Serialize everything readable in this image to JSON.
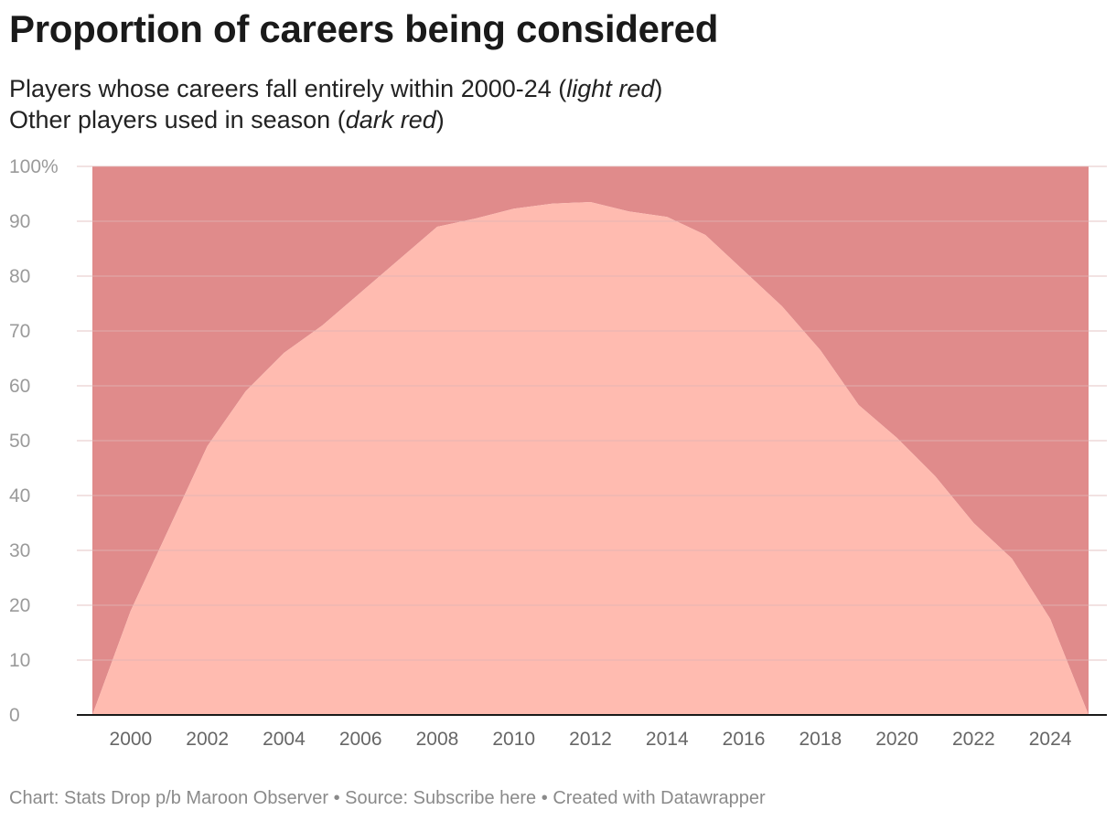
{
  "header": {
    "title": "Proportion of careers being considered",
    "subtitle_line1_pre": "Players whose careers fall entirely within 2000-24 (",
    "subtitle_line1_em": "light red",
    "subtitle_line1_post": ")",
    "subtitle_line2_pre": "Other players used in season (",
    "subtitle_line2_em": "dark red",
    "subtitle_line2_post": ")"
  },
  "footer": {
    "chart_label": "Chart: Stats Drop p/b Maroon Observer",
    "sep1": " • ",
    "source_label": "Source: ",
    "source_link": "Subscribe here",
    "sep2": " • ",
    "created": "Created with Datawrapper"
  },
  "colors": {
    "light_red": "#ffbbb0",
    "dark_red": "#e08b8b",
    "grid": "#e0b6b6",
    "baseline": "#1a1a1a"
  },
  "chart_data": {
    "type": "area",
    "stacked": true,
    "title": "Proportion of careers being considered",
    "xlabel": "",
    "ylabel": "",
    "xlim": [
      1999,
      2025
    ],
    "ylim": [
      0,
      100
    ],
    "x": [
      1999,
      2000,
      2001,
      2002,
      2003,
      2004,
      2005,
      2006,
      2007,
      2008,
      2009,
      2010,
      2011,
      2012,
      2013,
      2014,
      2015,
      2016,
      2017,
      2018,
      2019,
      2020,
      2021,
      2022,
      2023,
      2024,
      2025
    ],
    "series": [
      {
        "name": "Players whose careers fall entirely within 2000-24",
        "color": "light red",
        "values": [
          0,
          19,
          34,
          49,
          59,
          66,
          71,
          77,
          83,
          89,
          90.5,
          92.3,
          93.2,
          93.5,
          91.8,
          90.8,
          87.5,
          81,
          74.5,
          66.5,
          56.5,
          50.5,
          43.5,
          35,
          28.5,
          17.5,
          0
        ]
      },
      {
        "name": "Other players used in season",
        "color": "dark red",
        "values": [
          100,
          81,
          66,
          51,
          41,
          34,
          29,
          23,
          17,
          11,
          9.5,
          7.7,
          6.8,
          6.5,
          8.2,
          9.2,
          12.5,
          19,
          25.5,
          33.5,
          43.5,
          49.5,
          56.5,
          65,
          71.5,
          82.5,
          100
        ]
      }
    ],
    "y_ticks": [
      0,
      10,
      20,
      30,
      40,
      50,
      60,
      70,
      80,
      90,
      100
    ],
    "y_tick_labels": [
      "0",
      "10",
      "20",
      "30",
      "40",
      "50",
      "60",
      "70",
      "80",
      "90",
      "100%"
    ],
    "x_ticks": [
      2000,
      2002,
      2004,
      2006,
      2008,
      2010,
      2012,
      2014,
      2016,
      2018,
      2020,
      2022,
      2024
    ],
    "x_tick_labels": [
      "2000",
      "2002",
      "2004",
      "2006",
      "2008",
      "2010",
      "2012",
      "2014",
      "2016",
      "2018",
      "2020",
      "2022",
      "2024"
    ]
  }
}
